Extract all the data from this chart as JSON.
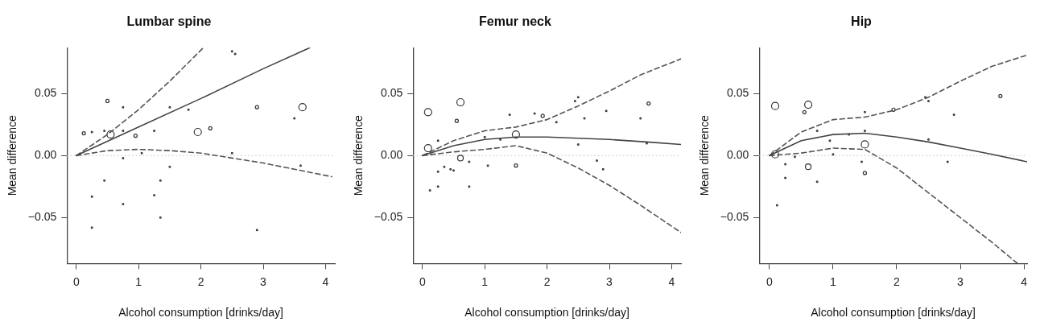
{
  "chart_data": [
    {
      "type": "line",
      "title": "Lumbar spine",
      "xlabel": "Alcohol consumption [drinks/day]",
      "ylabel": "Mean difference",
      "xlim": [
        -0.15,
        4.15
      ],
      "ylim": [
        -0.087,
        0.087
      ],
      "xticks": [
        0,
        1,
        2,
        3,
        4
      ],
      "yticks": [
        {
          "value": -0.05,
          "label": "−0.05"
        },
        {
          "value": 0,
          "label": "0.00"
        },
        {
          "value": 0.05,
          "label": "0.05"
        }
      ],
      "legend": false,
      "ref_lines": [
        {
          "axis": "y",
          "value": 0,
          "color": "#cccccc",
          "line_style": "dotted"
        }
      ],
      "series": [
        {
          "type": "line",
          "marker": "none",
          "color": "#444444",
          "line_style": "solid",
          "x": [
            0,
            1,
            2,
            3,
            3.75
          ],
          "values": [
            0,
            0.023,
            0.046,
            0.07,
            0.087
          ]
        },
        {
          "type": "line",
          "marker": "none",
          "color": "#555555",
          "line_style": "dashed",
          "x": [
            0,
            0.5,
            1,
            1.5,
            2.04
          ],
          "values": [
            0,
            0.017,
            0.037,
            0.06,
            0.087
          ]
        },
        {
          "type": "line",
          "marker": "none",
          "color": "#555555",
          "line_style": "dashed",
          "x": [
            0,
            0.5,
            1,
            1.5,
            2,
            2.5,
            3,
            3.5,
            4.1
          ],
          "values": [
            0,
            0.004,
            0.005,
            0.004,
            0.002,
            -0.002,
            -0.006,
            -0.011,
            -0.017
          ]
        },
        {
          "type": "bubble",
          "color": "#333333",
          "x": [
            0.55,
            1.95,
            3.63,
            0.5,
            0.12,
            0.95,
            2.9,
            2.15,
            0.25,
            0.45,
            0.75,
            0.75,
            1.25,
            1.5,
            1.8,
            0.25,
            0.45,
            0.75,
            0.25,
            1.35,
            1.25,
            1.35,
            1.5,
            0.75,
            2.9,
            3.5,
            2.5,
            2.55,
            2.5,
            3.6,
            1.05
          ],
          "values": [
            0.017,
            0.019,
            0.039,
            0.044,
            0.018,
            0.016,
            0.039,
            0.022,
            0.019,
            0.02,
            0.02,
            0.039,
            0.02,
            0.039,
            0.037,
            -0.033,
            -0.02,
            -0.039,
            -0.058,
            -0.02,
            -0.032,
            -0.05,
            -0.009,
            -0.002,
            -0.06,
            0.03,
            0.084,
            0.082,
            0.002,
            -0.008,
            0.002
          ],
          "sizes": [
            1,
            1,
            1,
            0.2,
            0.2,
            0.2,
            0.2,
            0.2,
            0.04,
            0.04,
            0.04,
            0.04,
            0.04,
            0.04,
            0.04,
            0.04,
            0.04,
            0.04,
            0.04,
            0.04,
            0.04,
            0.04,
            0.04,
            0.04,
            0.04,
            0.04,
            0.04,
            0.04,
            0.04,
            0.04,
            0.04
          ]
        }
      ]
    },
    {
      "type": "line",
      "title": "Femur neck",
      "xlabel": "Alcohol consumption [drinks/day]",
      "ylabel": "Mean difference",
      "xlim": [
        -0.15,
        4.15
      ],
      "ylim": [
        -0.087,
        0.087
      ],
      "xticks": [
        0,
        1,
        2,
        3,
        4
      ],
      "yticks": [
        {
          "value": -0.05,
          "label": "−0.05"
        },
        {
          "value": 0,
          "label": "0.00"
        },
        {
          "value": 0.05,
          "label": "0.05"
        }
      ],
      "legend": false,
      "ref_lines": [
        {
          "axis": "y",
          "value": 0,
          "color": "#cccccc",
          "line_style": "dotted"
        }
      ],
      "series": [
        {
          "type": "line",
          "marker": "none",
          "color": "#444444",
          "line_style": "solid",
          "x": [
            0,
            0.5,
            1,
            1.5,
            2,
            3,
            3.6,
            4.15
          ],
          "values": [
            0,
            0.008,
            0.013,
            0.015,
            0.015,
            0.013,
            0.011,
            0.009
          ]
        },
        {
          "type": "line",
          "marker": "none",
          "color": "#555555",
          "line_style": "dashed",
          "x": [
            0,
            0.5,
            1,
            1.5,
            2,
            2.5,
            3,
            3.5,
            4.15
          ],
          "values": [
            0,
            0.012,
            0.02,
            0.023,
            0.029,
            0.04,
            0.052,
            0.065,
            0.078
          ]
        },
        {
          "type": "line",
          "marker": "none",
          "color": "#555555",
          "line_style": "dashed",
          "x": [
            0,
            0.5,
            1,
            1.5,
            2,
            2.5,
            3,
            3.5,
            4.15
          ],
          "values": [
            0,
            0.003,
            0.005,
            0.008,
            0.002,
            -0.01,
            -0.024,
            -0.04,
            -0.062
          ]
        },
        {
          "type": "bubble",
          "color": "#333333",
          "x": [
            0.09,
            0.61,
            0.09,
            0.61,
            1.5,
            0.55,
            1.93,
            3.63,
            1.5,
            0.25,
            0.12,
            0.25,
            0.25,
            0.35,
            0.45,
            0.5,
            0.75,
            0.75,
            1.0,
            1.05,
            1.25,
            1.4,
            1.8,
            2.15,
            2.45,
            2.5,
            2.5,
            2.6,
            2.8,
            2.9,
            2.95,
            3.5,
            3.6
          ],
          "values": [
            0.035,
            0.043,
            0.006,
            -0.002,
            0.017,
            0.028,
            0.032,
            0.042,
            -0.008,
            0.012,
            -0.028,
            -0.013,
            -0.025,
            -0.009,
            -0.011,
            -0.012,
            -0.005,
            -0.025,
            0.015,
            -0.008,
            0.013,
            0.033,
            0.034,
            0.027,
            0.044,
            0.047,
            0.009,
            0.03,
            -0.004,
            -0.011,
            0.036,
            0.03,
            0.01
          ],
          "sizes": [
            1,
            1,
            1,
            0.6,
            1,
            0.2,
            0.2,
            0.2,
            0.2,
            0.04,
            0.04,
            0.04,
            0.04,
            0.04,
            0.04,
            0.04,
            0.04,
            0.04,
            0.04,
            0.04,
            0.04,
            0.04,
            0.04,
            0.04,
            0.04,
            0.04,
            0.04,
            0.04,
            0.04,
            0.04,
            0.04,
            0.04,
            0.04
          ]
        }
      ]
    },
    {
      "type": "line",
      "title": "Hip",
      "xlabel": "Alcohol consumption [drinks/day]",
      "ylabel": "Mean difference",
      "xlim": [
        -0.16,
        4.05
      ],
      "ylim": [
        -0.087,
        0.087
      ],
      "xticks": [
        0,
        1,
        2,
        3,
        4
      ],
      "yticks": [
        {
          "value": -0.05,
          "label": "−0.05"
        },
        {
          "value": 0,
          "label": "0.00"
        },
        {
          "value": 0.05,
          "label": "0.05"
        }
      ],
      "legend": false,
      "ref_lines": [
        {
          "axis": "y",
          "value": 0,
          "color": "#cccccc",
          "line_style": "dotted"
        }
      ],
      "series": [
        {
          "type": "line",
          "marker": "none",
          "color": "#444444",
          "line_style": "solid",
          "x": [
            0,
            0.5,
            1,
            1.5,
            2,
            2.5,
            3,
            3.5,
            4.05
          ],
          "values": [
            0,
            0.012,
            0.017,
            0.018,
            0.015,
            0.011,
            0.006,
            0.001,
            -0.005
          ]
        },
        {
          "type": "line",
          "marker": "none",
          "color": "#555555",
          "line_style": "dashed",
          "x": [
            0,
            0.5,
            1,
            1.5,
            2,
            2.5,
            3,
            3.5,
            4.05
          ],
          "values": [
            0,
            0.019,
            0.029,
            0.031,
            0.037,
            0.047,
            0.06,
            0.072,
            0.081
          ]
        },
        {
          "type": "line",
          "marker": "none",
          "color": "#555555",
          "line_style": "dashed",
          "x": [
            0,
            0.5,
            1,
            1.5,
            2,
            2.5,
            3,
            3.5,
            3.9
          ],
          "values": [
            0,
            0.002,
            0.006,
            0.005,
            -0.01,
            -0.03,
            -0.05,
            -0.07,
            -0.087
          ]
        },
        {
          "type": "bubble",
          "color": "#333333",
          "x": [
            0.09,
            0.61,
            0.09,
            0.61,
            1.5,
            0.55,
            1.5,
            3.63,
            1.95,
            0.25,
            0.25,
            0.12,
            0.75,
            0.75,
            0.95,
            1.0,
            1.25,
            1.45,
            1.5,
            1.5,
            2.45,
            2.5,
            2.5,
            2.8,
            2.9,
            0.4
          ],
          "values": [
            0.04,
            0.041,
            0.001,
            -0.009,
            0.009,
            0.035,
            -0.014,
            0.048,
            0.037,
            -0.007,
            -0.018,
            -0.04,
            0.02,
            -0.021,
            0.012,
            0.001,
            0.017,
            -0.005,
            0.02,
            0.035,
            0.047,
            0.044,
            0.013,
            -0.005,
            0.033,
            -0.001
          ],
          "sizes": [
            1,
            1,
            1,
            0.6,
            1,
            0.2,
            0.2,
            0.2,
            0.2,
            0.04,
            0.04,
            0.04,
            0.04,
            0.04,
            0.04,
            0.04,
            0.04,
            0.04,
            0.04,
            0.04,
            0.04,
            0.04,
            0.04,
            0.04,
            0.04,
            0.04
          ]
        }
      ]
    }
  ]
}
